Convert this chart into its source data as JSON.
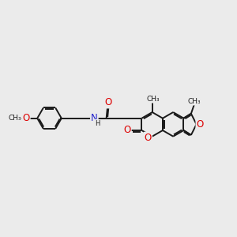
{
  "bg_color": "#ebebeb",
  "bond_color": "#1a1a1a",
  "bond_width": 1.4,
  "atom_colors": {
    "O": "#dd0000",
    "N": "#2222cc",
    "C": "#1a1a1a"
  },
  "font_size": 8.0,
  "fig_width": 3.0,
  "fig_height": 3.0,
  "xlim": [
    0,
    10
  ],
  "ylim": [
    2.5,
    7.5
  ]
}
